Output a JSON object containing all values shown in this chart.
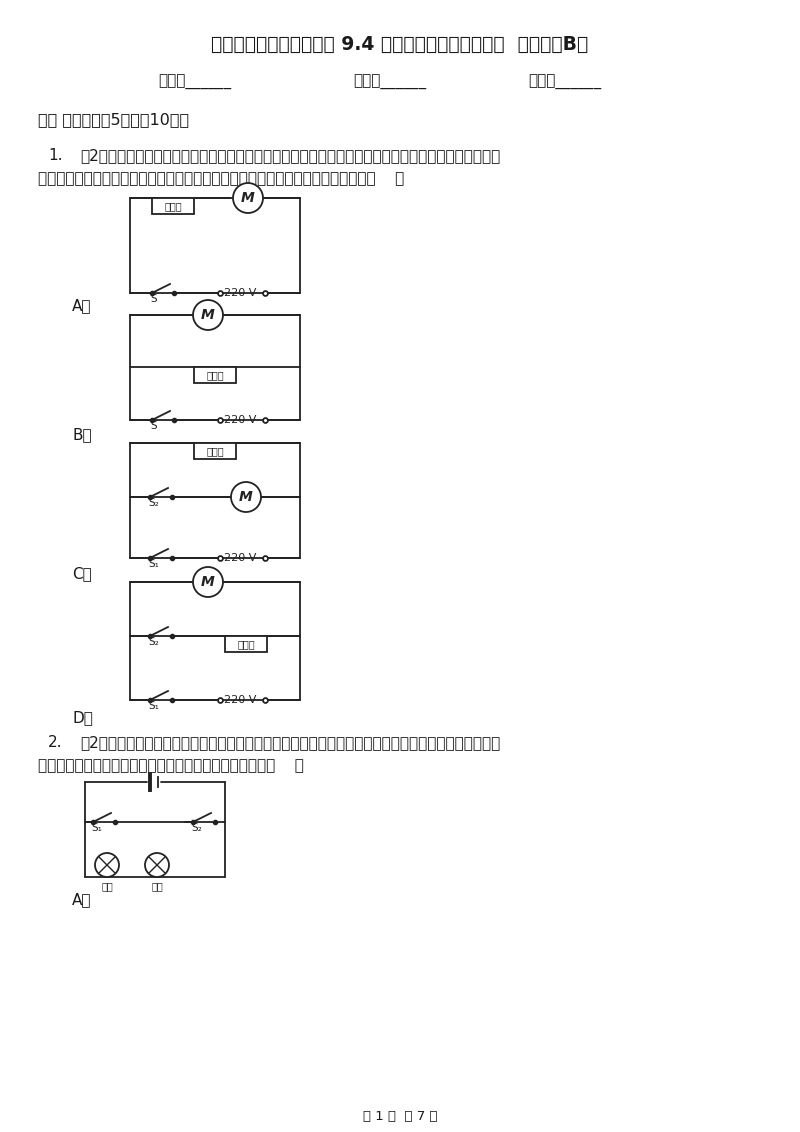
{
  "title": "教科版物理九年级下学期 9.4 家庭生活自动化、智能化  同步练习B卷",
  "name_label": "姓名：______",
  "class_label": "班级：______",
  "score_label": "成绩：______",
  "section1": "一、 单选题（共5题；共10分）",
  "q1_num": "1.",
  "q1_body": "（2分）家用电吹风由带扇叶的电动机和电热丝等组成。为了保证电吹风的安全使用，要求：电动机不工",
  "q1_body2": "作时，电热丝不能发热；电热丝不发热时，电动机仍能工作．电路中符合要求的是（    ）",
  "label_A": "A．",
  "label_B": "B．",
  "label_C": "C．",
  "label_D": "D．",
  "q2_num": "2.",
  "q2_body": "（2分）现代社会倡导文明出行，某班同学对十字路口人行横道的红、绿交通信号灯进行了观察，画出了",
  "q2_body2": "如图所示的控制人行红、绿灯的电路图，你认为可行的是（    ）",
  "q2_label_A": "A．",
  "footer": "第 1 页  共 7 页",
  "dianresi": "电热丝",
  "bg_color": "#ffffff",
  "text_color": "#1a1a1a"
}
